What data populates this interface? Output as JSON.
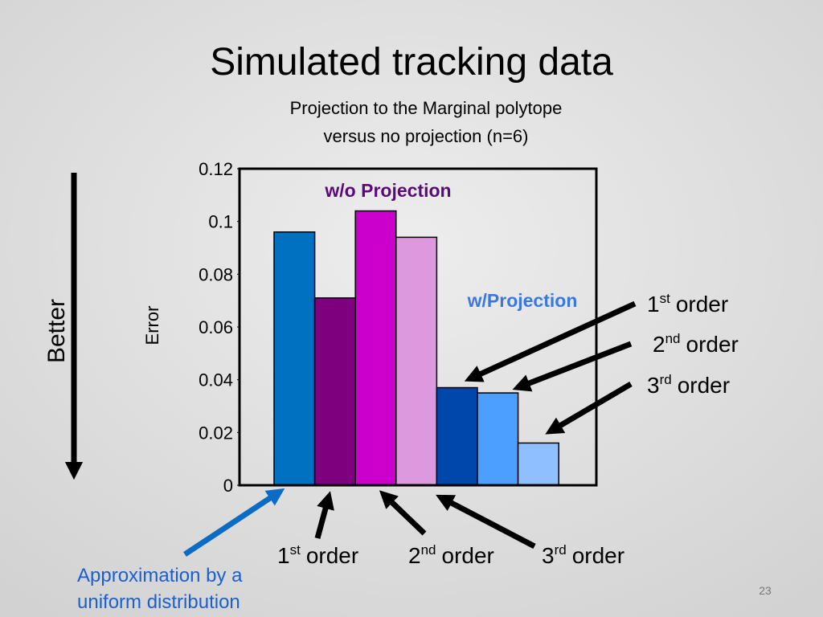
{
  "title": "Simulated tracking data",
  "page_number": "23",
  "side_label": "Better",
  "note": [
    "Approximation by a",
    "uniform distribution"
  ],
  "chart_data": {
    "type": "bar",
    "subtitle": [
      "Projection to the Marginal polytope",
      "versus no projection (n=6)"
    ],
    "ylabel": "Error",
    "categories": [
      null,
      null,
      null,
      null,
      null,
      null,
      null
    ],
    "values": [
      0.096,
      0.071,
      0.104,
      0.094,
      0.037,
      0.035,
      0.016
    ],
    "colors": [
      "#0070c0",
      "#7f007f",
      "#cc00cc",
      "#dd99dd",
      "#0047ab",
      "#4d9fff",
      "#8fbfff"
    ],
    "ylim": [
      0,
      0.12
    ],
    "yticks": [
      0,
      0.02,
      0.04,
      0.06,
      0.08,
      0.1,
      0.12
    ],
    "annotations": {
      "without_projection": "w/o Projection",
      "with_projection": "w/Projection",
      "bottom": [
        {
          "number": "1",
          "suffix": "st",
          "text": "order"
        },
        {
          "number": "2",
          "suffix": "nd",
          "text": "order"
        },
        {
          "number": "3",
          "suffix": "rd",
          "text": "order"
        }
      ],
      "right": [
        {
          "number": "1",
          "suffix": "st",
          "text": "order"
        },
        {
          "number": "2",
          "suffix": "nd",
          "text": "order"
        },
        {
          "number": "3",
          "suffix": "rd",
          "text": "order"
        }
      ]
    }
  }
}
